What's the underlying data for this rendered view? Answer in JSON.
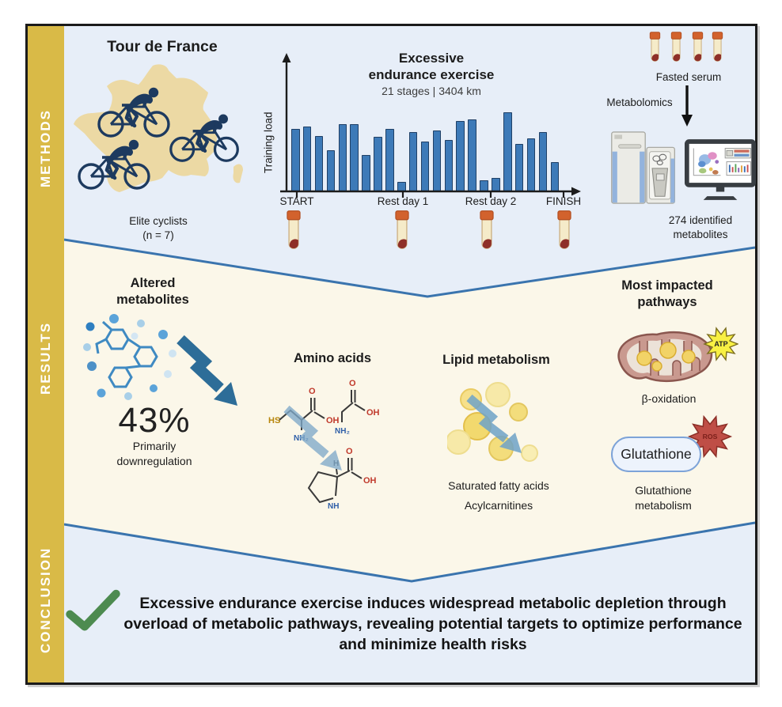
{
  "palette": {
    "sidebar_yellow": "#d9ba47",
    "methods_bg": "#e7eef8",
    "results_bg": "#fbf7e9",
    "conclusion_bg": "#e7eef8",
    "divider_blue": "#3a74ae",
    "bar_blue": "#3d7ab8",
    "bar_border": "#204066",
    "decline_arrow_blue": "#2d6d98",
    "light_arrow_blue": "#7fa9c9",
    "check_green": "#4d8b50",
    "atp_yellow": "#f8f043",
    "ros_red": "#bf4e46",
    "tube_cap_orange": "#d2622d",
    "serum_red": "#8e2f28",
    "map_tan": "#ecd9a4",
    "cyclist_navy": "#1d3a5f",
    "lipid_yellow": "#f3dd7c",
    "mitochondria_pink": "#c9998f"
  },
  "sidebar": {
    "sections": [
      {
        "label": "METHODS"
      },
      {
        "label": "RESULTS"
      },
      {
        "label": "CONCLUSION"
      }
    ]
  },
  "methods": {
    "tour_title": "Tour de France",
    "elite_cyclists_line1": "Elite cyclists",
    "elite_cyclists_line2": "(n = 7)",
    "fasted_serum_label": "Fasted serum",
    "metabolomics_label": "Metabolomics",
    "identified_line1": "274 identified",
    "identified_line2": "metabolites"
  },
  "chart_data": {
    "type": "bar",
    "title_line1": "Excessive",
    "title_line2": "endurance exercise",
    "subtitle": "21 stages | 3404 km",
    "ylabel": "Training load",
    "x_axis_labels": [
      "START",
      "Rest day 1",
      "Rest day 2",
      "FINISH"
    ],
    "values": [
      79,
      82,
      70,
      52,
      85,
      85,
      46,
      69,
      79,
      12,
      75,
      63,
      77,
      65,
      89,
      91,
      14,
      17,
      100,
      60,
      67,
      75,
      37
    ],
    "n_bars": 23,
    "units": "arbitrary training-load units (estimated bar heights, max = 100)",
    "notes": "21 stages + 2 rest days; low bars at positions 10 and 17 are rest days; serum sampled at START, Rest day 1, Rest day 2, FINISH",
    "grid": "off",
    "legend": "none"
  },
  "results": {
    "altered_line1": "Altered",
    "altered_line2": "metabolites",
    "percent": "43%",
    "primarily": "Primarily",
    "downregulation": "downregulation",
    "amino_title": "Amino acids",
    "lipid_title": "Lipid metabolism",
    "saturated": "Saturated fatty acids",
    "acylcarnitines": "Acylcarnitines",
    "impacted_line1": "Most impacted",
    "impacted_line2": "pathways",
    "beta_oxidation": "β-oxidation",
    "glutathione_pill": "Glutathione",
    "glutathione_line1": "Glutathione",
    "glutathione_line2": "metabolism",
    "atp_label": "ATP",
    "ros_label": "ROS",
    "chem_labels": {
      "hs": "HS",
      "cys_o": "O",
      "cys_oh": "OH",
      "cys_nh2": "NH₂",
      "gly_o": "O",
      "gly_oh": "OH",
      "gly_nh2": "NH₂",
      "pro_h": "H",
      "pro_o": "O",
      "pro_oh": "OH",
      "pro_nh": "NH"
    }
  },
  "conclusion": {
    "line1": "Excessive endurance exercise induces widespread metabolic depletion through",
    "line2": "overload of metabolic pathways, revealing potential targets to optimize performance",
    "line3": "and minimize health risks"
  }
}
